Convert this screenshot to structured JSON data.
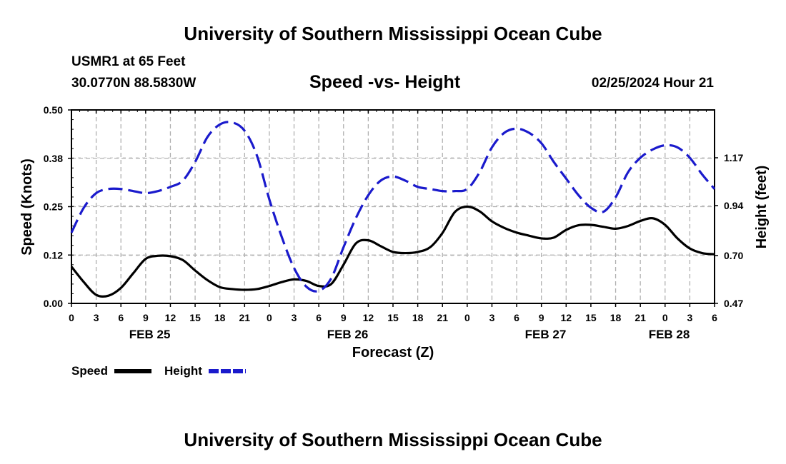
{
  "header": {
    "title": "University of Southern Mississippi Ocean Cube",
    "station": "USMR1 at 65 Feet",
    "coords": "30.0770N  88.5830W",
    "subtitle": "Speed -vs- Height",
    "datetime": "02/25/2024 Hour 21"
  },
  "footer": {
    "title": "University of Southern Mississippi Ocean Cube"
  },
  "colors": {
    "speed": "#000000",
    "height": "#1a1acc",
    "grid": "#b0b0b0"
  },
  "chart_data": {
    "type": "line",
    "title": "Speed -vs- Height",
    "xlabel": "Forecast (Z)",
    "ylabel": "Speed (Knots)",
    "y2label": "Height (feet)",
    "xlim": [
      0,
      78
    ],
    "ylim": [
      0,
      0.5
    ],
    "y2lim": [
      0.47,
      1.4
    ],
    "x_tick_labels": [
      "0",
      "3",
      "6",
      "9",
      "12",
      "15",
      "18",
      "21",
      "0",
      "3",
      "6",
      "9",
      "12",
      "15",
      "18",
      "21",
      "0",
      "3",
      "6",
      "9",
      "12",
      "15",
      "18",
      "21",
      "0",
      "3",
      "6"
    ],
    "y_tick_labels": [
      "0.00",
      "0.12",
      "0.25",
      "0.38",
      "0.50"
    ],
    "y2_tick_labels": [
      "0.47",
      "0.70",
      "0.94",
      "1.17"
    ],
    "date_labels": [
      {
        "text": "FEB 25",
        "x": 9.5
      },
      {
        "text": "FEB 26",
        "x": 33.5
      },
      {
        "text": "FEB 27",
        "x": 57.5
      },
      {
        "text": "FEB 28",
        "x": 72.5
      }
    ],
    "series": [
      {
        "name": "Speed",
        "axis": "left",
        "style": "solid",
        "x": [
          0,
          1.5,
          3,
          4.5,
          6,
          7.5,
          9,
          10.5,
          12,
          13.5,
          15,
          16.5,
          18,
          19.5,
          21,
          22.5,
          24,
          25.5,
          27,
          28.5,
          30,
          31.5,
          33,
          34.5,
          36,
          37.5,
          39,
          40.5,
          42,
          43.5,
          45,
          46.5,
          48,
          49.5,
          51,
          52.5,
          54,
          55.5,
          57,
          58.5,
          60,
          61.5,
          63,
          64.5,
          66,
          67.5,
          69,
          70.5,
          72,
          73.5,
          75,
          76.5,
          78
        ],
        "values": [
          0.095,
          0.055,
          0.022,
          0.02,
          0.04,
          0.078,
          0.115,
          0.123,
          0.122,
          0.112,
          0.085,
          0.06,
          0.042,
          0.037,
          0.035,
          0.037,
          0.045,
          0.055,
          0.062,
          0.058,
          0.045,
          0.05,
          0.1,
          0.155,
          0.163,
          0.148,
          0.133,
          0.13,
          0.133,
          0.145,
          0.182,
          0.236,
          0.25,
          0.238,
          0.212,
          0.195,
          0.183,
          0.175,
          0.168,
          0.17,
          0.19,
          0.202,
          0.203,
          0.198,
          0.193,
          0.2,
          0.213,
          0.22,
          0.203,
          0.168,
          0.142,
          0.13,
          0.127
        ]
      },
      {
        "name": "Height",
        "axis": "right",
        "style": "dashed",
        "x": [
          0,
          1.5,
          3,
          4.5,
          6,
          7.5,
          9,
          10.5,
          12,
          13.5,
          15,
          16.5,
          18,
          19.5,
          21,
          22.5,
          24,
          25.5,
          27,
          28.5,
          30,
          31.5,
          33,
          34.5,
          36,
          37.5,
          39,
          40.5,
          42,
          43.5,
          45,
          46.5,
          48,
          49.5,
          51,
          52.5,
          54,
          55.5,
          57,
          58.5,
          60,
          61.5,
          63,
          64.5,
          66,
          67.5,
          69,
          70.5,
          72,
          73.5,
          75,
          76.5,
          78
        ],
        "values": [
          0.81,
          0.93,
          1.0,
          1.02,
          1.02,
          1.01,
          1.0,
          1.01,
          1.03,
          1.06,
          1.15,
          1.27,
          1.33,
          1.34,
          1.3,
          1.18,
          0.97,
          0.79,
          0.64,
          0.55,
          0.53,
          0.59,
          0.74,
          0.88,
          0.99,
          1.06,
          1.08,
          1.06,
          1.03,
          1.02,
          1.01,
          1.01,
          1.02,
          1.1,
          1.22,
          1.29,
          1.31,
          1.29,
          1.24,
          1.15,
          1.07,
          0.99,
          0.93,
          0.91,
          0.98,
          1.1,
          1.17,
          1.21,
          1.23,
          1.22,
          1.17,
          1.09,
          1.02
        ]
      }
    ],
    "legend": [
      {
        "label": "Speed",
        "color": "#000000",
        "style": "solid"
      },
      {
        "label": "Height",
        "color": "#1a1acc",
        "style": "dashed"
      }
    ]
  }
}
